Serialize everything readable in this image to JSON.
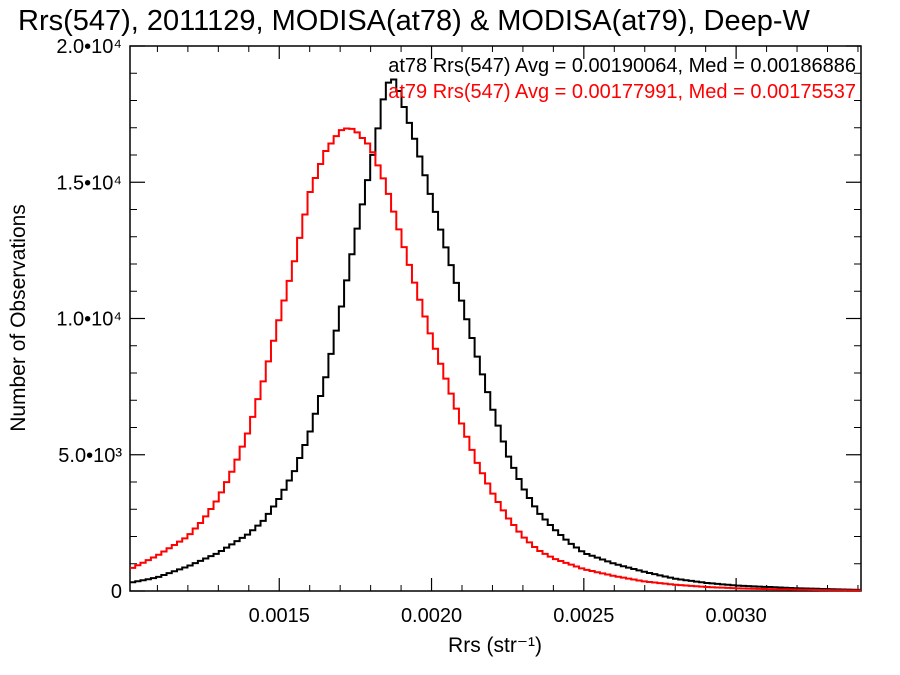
{
  "chart_data": {
    "type": "line",
    "title": "Rrs(547), 2011129, MODISA(at78) & MODISA(at79), Deep-W",
    "xlabel": "Rrs (str⁻¹)",
    "ylabel": "Number of Observations",
    "xlim": [
      0.00101,
      0.00341
    ],
    "ylim": [
      0,
      20000
    ],
    "x_ticks": [
      {
        "value": 0.0015,
        "label": "0.0015"
      },
      {
        "value": 0.002,
        "label": "0.0020"
      },
      {
        "value": 0.0025,
        "label": "0.0025"
      },
      {
        "value": 0.003,
        "label": "0.0030"
      }
    ],
    "y_ticks": [
      {
        "value": 0,
        "label": "0"
      },
      {
        "value": 5000,
        "label": "5.0•10³"
      },
      {
        "value": 10000,
        "label": "1.0•10⁴"
      },
      {
        "value": 15000,
        "label": "1.5•10⁴"
      },
      {
        "value": 20000,
        "label": "2.0•10⁴"
      }
    ],
    "grid": false,
    "step": true,
    "series": [
      {
        "name": "at78 Rrs(547) Avg = 0.00190064, Med = 0.00186886",
        "color": "#000000",
        "x": [
          0.00101,
          0.0011,
          0.0012,
          0.0013,
          0.0014,
          0.00145,
          0.0015,
          0.00155,
          0.0016,
          0.00165,
          0.0017,
          0.00175,
          0.0018,
          0.00183,
          0.00185,
          0.00188,
          0.0019,
          0.00195,
          0.002,
          0.00205,
          0.0021,
          0.00215,
          0.0022,
          0.00225,
          0.0023,
          0.00235,
          0.0024,
          0.00245,
          0.0025,
          0.0026,
          0.0027,
          0.0028,
          0.0029,
          0.003,
          0.0031,
          0.0032,
          0.0033,
          0.00341
        ],
        "y": [
          300,
          500,
          900,
          1400,
          2100,
          2600,
          3400,
          4400,
          5800,
          7700,
          10200,
          13000,
          15600,
          17300,
          18600,
          18800,
          18100,
          16400,
          14400,
          12500,
          10600,
          8600,
          6700,
          5000,
          3800,
          2900,
          2300,
          1800,
          1400,
          1000,
          700,
          450,
          300,
          200,
          150,
          100,
          70,
          40
        ]
      },
      {
        "name": "at79 Rrs(547) Avg = 0.00177991, Med = 0.00175537",
        "color": "#ff0000",
        "x": [
          0.00101,
          0.0011,
          0.0012,
          0.00125,
          0.0013,
          0.00135,
          0.0014,
          0.00145,
          0.0015,
          0.00155,
          0.0016,
          0.00165,
          0.0017,
          0.00173,
          0.00175,
          0.0018,
          0.00185,
          0.0019,
          0.00195,
          0.002,
          0.00205,
          0.0021,
          0.00215,
          0.0022,
          0.00225,
          0.0023,
          0.00235,
          0.0024,
          0.0025,
          0.0026,
          0.0027,
          0.0028,
          0.0029,
          0.003,
          0.0031,
          0.0032,
          0.0033,
          0.00341
        ],
        "y": [
          800,
          1300,
          2000,
          2600,
          3400,
          4500,
          5900,
          7800,
          10000,
          12100,
          14600,
          16100,
          16900,
          17000,
          16900,
          16300,
          14900,
          13000,
          11100,
          9300,
          7700,
          6100,
          4700,
          3600,
          2700,
          2000,
          1500,
          1200,
          800,
          550,
          350,
          230,
          150,
          100,
          70,
          50,
          30,
          20
        ]
      }
    ]
  }
}
